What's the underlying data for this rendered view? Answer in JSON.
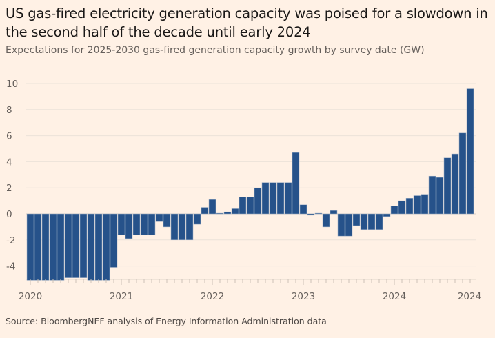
{
  "title": "US gas-fired electricity generation capacity was poised for a slowdown in the second half of the decade until early 2024",
  "subtitle": "Expectations for 2025-2030 gas-fired generation capacity growth by survey date (GW)",
  "source": "Source: BloombergNEF analysis of Energy Information Administration data",
  "colors": {
    "bar": "#26528a",
    "background": "#fff1e5",
    "grid": "#ebe2d9"
  },
  "chart_data": {
    "type": "bar",
    "title": "",
    "xlabel": "",
    "ylabel": "",
    "ylim": [
      -5.2,
      10.5
    ],
    "yticks": [
      -4,
      -2,
      0,
      2,
      4,
      6,
      8,
      10
    ],
    "xtick_labels": [
      "2020",
      "2021",
      "2022",
      "2023",
      "2024",
      "2024"
    ],
    "grid": true,
    "categories": [
      "2020-01",
      "2020-02",
      "2020-03",
      "2020-04",
      "2020-05",
      "2020-06",
      "2020-07",
      "2020-08",
      "2020-09",
      "2020-10",
      "2020-11",
      "2020-12",
      "2021-01",
      "2021-02",
      "2021-03",
      "2021-04",
      "2021-05",
      "2021-06",
      "2021-07",
      "2021-08",
      "2021-09",
      "2021-10",
      "2021-11",
      "2021-12",
      "2022-01",
      "2022-02",
      "2022-03",
      "2022-04",
      "2022-05",
      "2022-06",
      "2022-07",
      "2022-08",
      "2022-09",
      "2022-10",
      "2022-11",
      "2022-12",
      "2023-01",
      "2023-02",
      "2023-03",
      "2023-04",
      "2023-05",
      "2023-06",
      "2023-07",
      "2023-08",
      "2023-09",
      "2023-10",
      "2023-11",
      "2023-12",
      "2024-01",
      "2024-02",
      "2024-03",
      "2024-04",
      "2024-05",
      "2024-06",
      "2024-07",
      "2024-08",
      "2024-09",
      "2024-10",
      "2024-11"
    ],
    "values": [
      -5.1,
      -5.1,
      -5.1,
      -5.1,
      -5.1,
      -4.9,
      -4.9,
      -4.9,
      -5.1,
      -5.1,
      -5.1,
      -4.1,
      -1.6,
      -1.9,
      -1.6,
      -1.6,
      -1.6,
      -0.6,
      -1.0,
      -2.0,
      -2.0,
      -2.0,
      -0.8,
      0.5,
      1.1,
      0.05,
      0.15,
      0.4,
      1.3,
      1.3,
      2.0,
      2.4,
      2.4,
      2.4,
      2.4,
      4.7,
      0.7,
      -0.1,
      0.05,
      -1.0,
      0.25,
      -1.7,
      -1.7,
      -0.9,
      -1.2,
      -1.2,
      -1.2,
      -0.2,
      0.6,
      1.0,
      1.2,
      1.4,
      1.5,
      2.9,
      2.8,
      4.3,
      4.6,
      6.2,
      9.6
    ]
  }
}
